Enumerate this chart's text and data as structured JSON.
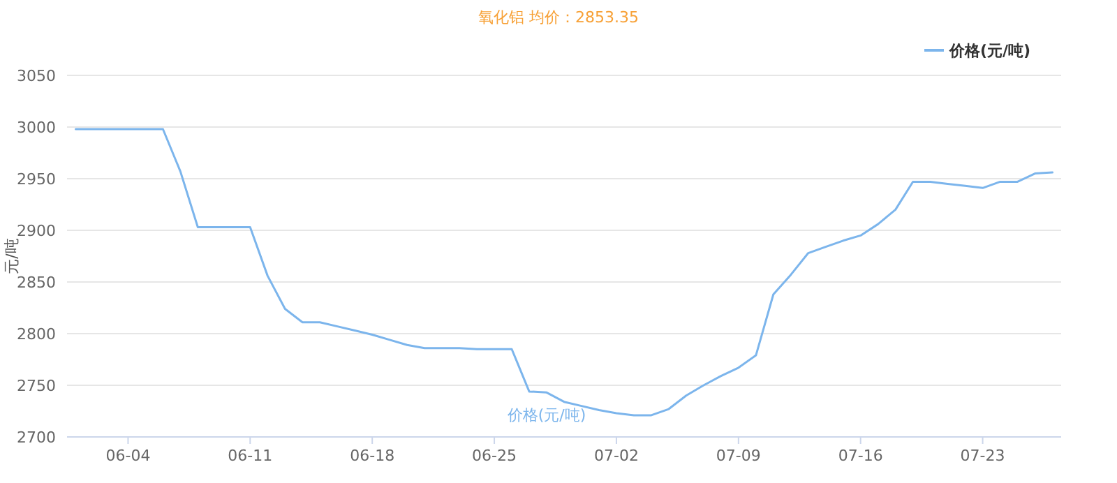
{
  "chart_data": {
    "type": "line",
    "title": "氧化铝 均价：2853.35",
    "ylabel": "元/吨",
    "categories": [
      null,
      null,
      null,
      "06-04",
      null,
      null,
      null,
      null,
      null,
      null,
      "06-11",
      null,
      null,
      null,
      null,
      null,
      null,
      "06-18",
      null,
      null,
      null,
      null,
      null,
      null,
      "06-25",
      null,
      null,
      null,
      null,
      null,
      null,
      "07-02",
      null,
      null,
      null,
      null,
      null,
      null,
      "07-09",
      null,
      null,
      null,
      null,
      null,
      null,
      "07-16",
      null,
      null,
      null,
      null,
      null,
      null,
      "07-23",
      null,
      null,
      null,
      null
    ],
    "series": [
      {
        "name": "价格(元/吨)",
        "color": "#7cb5ec",
        "values": [
          2998,
          2998,
          2998,
          2998,
          2998,
          2998,
          2957,
          2903,
          2903,
          2903,
          2903,
          2856,
          2824,
          2811,
          2811,
          2807,
          2803,
          2799,
          2794,
          2789,
          2786,
          2786,
          2786,
          2785,
          2785,
          2785,
          2744,
          2743,
          2734,
          2730,
          2726,
          2723,
          2721,
          2721,
          2727,
          2740,
          2750,
          2759,
          2767,
          2779,
          2838,
          2857,
          2878,
          2884,
          2890,
          2895,
          2906,
          2920,
          2947,
          2947,
          2945,
          2943,
          2941,
          2947,
          2947,
          2955,
          2956
        ]
      }
    ],
    "ylim": [
      2700,
      3050
    ],
    "yticks": [
      2700,
      2750,
      2800,
      2850,
      2900,
      2950,
      3000,
      3050
    ],
    "grid": "y",
    "legend": "top right",
    "marker": "none",
    "line_style": "solid"
  }
}
